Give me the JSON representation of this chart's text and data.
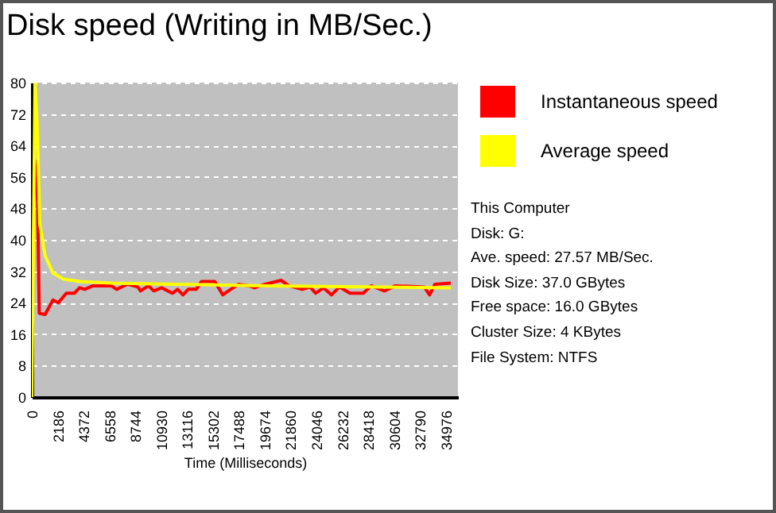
{
  "chart_data": {
    "type": "line",
    "title": "Disk speed (Writing in MB/Sec.)",
    "xlabel": "Time (Milliseconds)",
    "xlim": [
      0,
      36000
    ],
    "xticks": [
      0,
      2186,
      4372,
      6558,
      8744,
      10930,
      13116,
      15302,
      17488,
      19674,
      21860,
      24046,
      26232,
      28418,
      30604,
      32790,
      34976
    ],
    "ylim": [
      0,
      80
    ],
    "yticks": [
      0,
      8,
      16,
      24,
      32,
      40,
      48,
      56,
      64,
      72,
      80
    ],
    "grid": "y",
    "legend": "right",
    "series": [
      {
        "name": "Instantaneous speed",
        "color": "#ff0000",
        "x": [
          224,
          493,
          627,
          1120,
          1792,
          2240,
          2912,
          3584,
          4032,
          4480,
          5152,
          6720,
          7168,
          8064,
          8960,
          9184,
          9856,
          10304,
          10976,
          11872,
          12320,
          12768,
          13216,
          13888,
          14336,
          15456,
          16128,
          16800,
          17472,
          18368,
          18816,
          19712,
          21056,
          21728,
          22848,
          23520,
          23968,
          24640,
          25312,
          25984,
          26880,
          28000,
          28672,
          29792,
          30688,
          33152,
          33600,
          34048,
          35392
        ],
        "values": [
          60.4,
          49.6,
          21.3,
          21,
          24.7,
          24,
          26.4,
          26.4,
          27.8,
          27.4,
          28.3,
          28.3,
          27.4,
          28.7,
          28,
          27,
          28.3,
          27,
          27.8,
          26.4,
          27.4,
          26,
          27.4,
          27.4,
          29.4,
          29.4,
          26,
          27.4,
          28.7,
          28.3,
          27.8,
          28.7,
          29.7,
          28.3,
          27.4,
          28,
          26.4,
          27.8,
          26,
          28,
          26.4,
          26.4,
          28.3,
          27,
          28.3,
          28,
          26,
          28.7,
          29
        ]
      },
      {
        "name": "Average speed",
        "color": "#ffff00",
        "x": [
          0,
          269,
          448,
          672,
          1120,
          1792,
          2688,
          4032,
          6720,
          12100,
          20000,
          35392
        ],
        "values": [
          0,
          80,
          70,
          44,
          36,
          31.5,
          30,
          29.4,
          29,
          28.7,
          28.3,
          27.8
        ]
      }
    ],
    "annotations": [
      "This Computer",
      "Disk: G:",
      "Ave. speed: 27.57 MB/Sec.",
      "Disk Size: 37.0 GBytes",
      "Free space: 16.0 GBytes",
      "Cluster Size: 4 KBytes",
      "File System: NTFS"
    ]
  }
}
